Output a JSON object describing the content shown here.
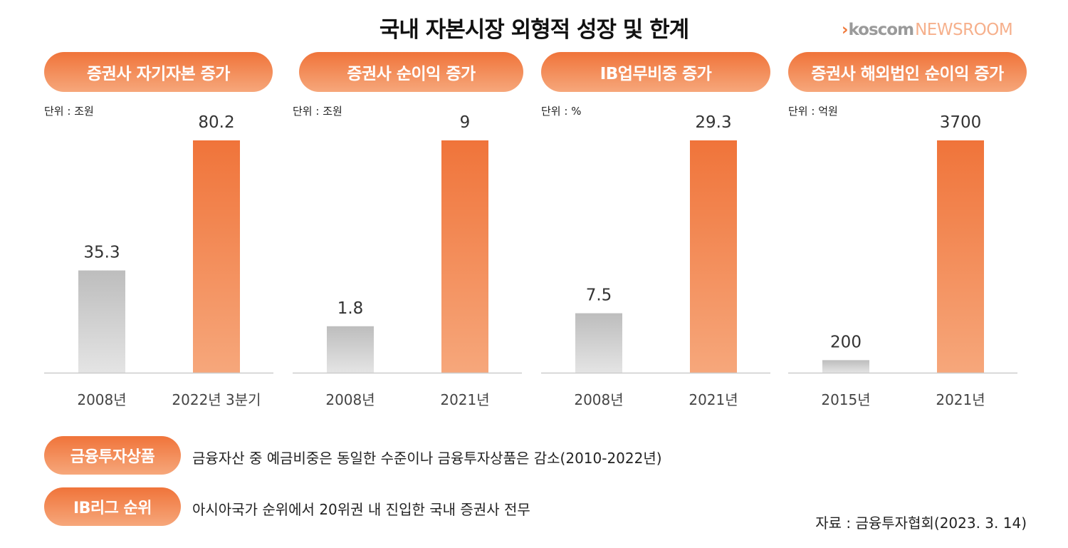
{
  "title": "국내 자본시장 외형적 성장 및 한계",
  "logo": {
    "mark": "›",
    "name": "koscom",
    "sub": "NEWSROOM"
  },
  "colors": {
    "accent_top": "#f0743a",
    "accent_bottom": "#f6a77b",
    "gray_top": "#bdbdbd",
    "gray_bottom": "#e4e4e4",
    "axis": "#cccccc"
  },
  "chart_data": [
    {
      "type": "bar",
      "title": "증권사 자기자본 증가",
      "unit": "단위 : 조원",
      "categories": [
        "2008년",
        "2022년 3분기"
      ],
      "values": [
        35.3,
        80.2
      ],
      "labels": [
        "35.3",
        "80.2"
      ],
      "ylim": [
        0,
        80.2
      ]
    },
    {
      "type": "bar",
      "title": "증권사 순이익 증가",
      "unit": "단위 : 조원",
      "categories": [
        "2008년",
        "2021년"
      ],
      "values": [
        1.8,
        9
      ],
      "labels": [
        "1.8",
        "9"
      ],
      "ylim": [
        0,
        9
      ]
    },
    {
      "type": "bar",
      "title": "IB업무비중 증가",
      "unit": "단위 : %",
      "categories": [
        "2008년",
        "2021년"
      ],
      "values": [
        7.5,
        29.3
      ],
      "labels": [
        "7.5",
        "29.3"
      ],
      "ylim": [
        0,
        29.3
      ]
    },
    {
      "type": "bar",
      "title": "증권사 해외법인 순이익 증가",
      "unit": "단위 : 억원",
      "categories": [
        "2015년",
        "2021년"
      ],
      "values": [
        200,
        3700
      ],
      "labels": [
        "200",
        "3700"
      ],
      "ylim": [
        0,
        3700
      ]
    }
  ],
  "notes": [
    {
      "label": "금융투자상품",
      "text": "금융자산 중 예금비중은 동일한 수준이나 금융투자상품은 감소(2010-2022년)"
    },
    {
      "label": "IB리그 순위",
      "text": "아시아국가 순위에서 20위권 내 진입한 국내 증권사 전무"
    }
  ],
  "source": "자료 : 금융투자협회(2023. 3. 14)"
}
